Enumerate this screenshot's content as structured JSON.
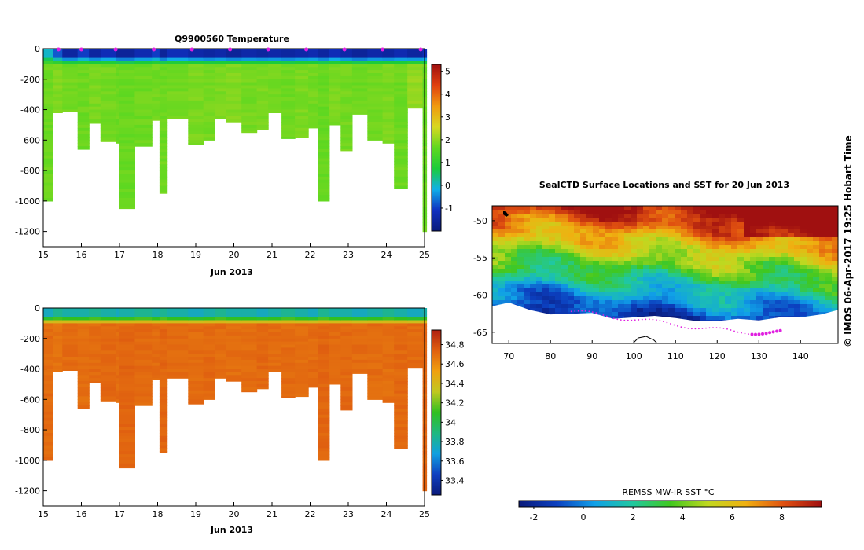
{
  "colors": {
    "temp_stops": [
      "#0a1a7a",
      "#1030c0",
      "#10b0e8",
      "#1ccc3a",
      "#60d820",
      "#d8d820",
      "#f09a10",
      "#e04010",
      "#a01010"
    ],
    "sal_stops": [
      "#0a1a7a",
      "#1040c0",
      "#10a0e0",
      "#20b880",
      "#30c020",
      "#c0c820",
      "#f0a010",
      "#e06010",
      "#b02010"
    ],
    "sst_stops": [
      "#0a1a7a",
      "#0c40c0",
      "#10a0e8",
      "#20c8a0",
      "#40c820",
      "#c0d820",
      "#f0b010",
      "#e05010",
      "#a01010"
    ],
    "marker": "#e020e0"
  },
  "chart_data": [
    {
      "id": "temperature",
      "type": "heatmap",
      "title": "Q9900560  Temperature",
      "xlabel": "Jun 2013",
      "ylabel": "",
      "xlim": [
        15,
        25
      ],
      "ylim": [
        -1300,
        0
      ],
      "x_ticks": [
        "15",
        "16",
        "17",
        "18",
        "19",
        "20",
        "21",
        "22",
        "23",
        "24",
        "25"
      ],
      "y_ticks": [
        "0",
        "-200",
        "-400",
        "-600",
        "-800",
        "-1000",
        "-1200"
      ],
      "colorbar_range": [
        -2,
        5.3
      ],
      "colorbar_ticks": [
        "5",
        "4",
        "3",
        "2",
        "1",
        "0",
        "-1"
      ],
      "profiles": {
        "start": [
          15.0,
          15.25,
          15.5,
          15.9,
          16.2,
          16.5,
          16.9,
          17.0,
          17.4,
          17.85,
          18.05,
          18.25,
          18.8,
          19.2,
          19.5,
          19.8,
          20.2,
          20.6,
          20.9,
          21.25,
          21.6,
          21.95,
          22.2,
          22.5,
          22.8,
          23.1,
          23.5,
          23.9,
          24.2,
          24.55,
          24.95
        ],
        "end": [
          15.25,
          15.5,
          15.9,
          16.2,
          16.5,
          16.9,
          17.0,
          17.4,
          17.85,
          18.05,
          18.25,
          18.8,
          19.2,
          19.5,
          19.8,
          20.2,
          20.6,
          20.9,
          21.25,
          21.6,
          21.95,
          22.2,
          22.5,
          22.8,
          23.1,
          23.5,
          23.9,
          24.2,
          24.55,
          24.95,
          25.05
        ],
        "depth": [
          -1000,
          -420,
          -410,
          -660,
          -490,
          -610,
          -620,
          -1050,
          -640,
          -470,
          -950,
          -460,
          -630,
          -600,
          -460,
          -480,
          -550,
          -530,
          -420,
          -590,
          -580,
          -520,
          -1000,
          -500,
          -670,
          -430,
          -600,
          -620,
          -920,
          -390,
          -1200
        ],
        "surface_value": [
          0.0,
          -0.8,
          -1.5,
          -1.0,
          -1.5,
          -1.2,
          -1.6,
          -1.6,
          -1.3,
          -1.0,
          -1.6,
          -1.2,
          -1.4,
          -1.5,
          -1.4,
          -1.6,
          -1.4,
          -1.5,
          -1.4,
          -1.5,
          -1.4,
          -1.3,
          -1.5,
          -1.2,
          -1.4,
          -1.6,
          -1.4,
          -1.5,
          -1.3,
          -1.5,
          -1.2
        ],
        "deep_value": [
          1.75,
          1.9,
          1.8,
          1.75,
          1.85,
          1.8,
          1.75,
          1.7,
          1.75,
          1.8,
          1.75,
          1.8,
          1.85,
          1.8,
          1.85,
          1.9,
          1.8,
          1.85,
          1.8,
          1.75,
          1.85,
          1.8,
          1.7,
          1.85,
          1.8,
          1.75,
          1.8,
          1.85,
          1.75,
          2.05,
          1.7
        ]
      },
      "surface_markers_x": [
        15.4,
        16.0,
        16.9,
        17.9,
        18.9,
        19.9,
        20.9,
        21.9,
        22.9,
        23.9,
        24.9
      ]
    },
    {
      "id": "salinity",
      "type": "heatmap",
      "title": "",
      "xlabel": "Jun 2013",
      "ylabel": "",
      "xlim": [
        15,
        25
      ],
      "ylim": [
        -1300,
        0
      ],
      "x_ticks": [
        "15",
        "16",
        "17",
        "18",
        "19",
        "20",
        "21",
        "22",
        "23",
        "24",
        "25"
      ],
      "y_ticks": [
        "0",
        "-200",
        "-400",
        "-600",
        "-800",
        "-1000",
        "-1200"
      ],
      "colorbar_range": [
        33.25,
        34.95
      ],
      "colorbar_ticks": [
        "34.8",
        "34.6",
        "34.4",
        "34.2",
        "34",
        "33.8",
        "33.6",
        "33.4"
      ],
      "profiles": {
        "surface_value": [
          33.75,
          33.85,
          33.8,
          33.8,
          33.85,
          33.8,
          33.75,
          33.8,
          33.85,
          33.8,
          33.85,
          33.8,
          33.75,
          33.8,
          33.85,
          33.8,
          33.8,
          33.75,
          33.8,
          33.85,
          33.8,
          33.75,
          33.85,
          33.8,
          33.8,
          33.75,
          33.8,
          33.85,
          33.8,
          33.75,
          33.8
        ],
        "deep_value": [
          34.7,
          34.68,
          34.7,
          34.69,
          34.7,
          34.71,
          34.7,
          34.72,
          34.71,
          34.7,
          34.72,
          34.7,
          34.7,
          34.71,
          34.7,
          34.69,
          34.7,
          34.71,
          34.7,
          34.7,
          34.69,
          34.7,
          34.72,
          34.7,
          34.71,
          34.7,
          34.7,
          34.69,
          34.71,
          34.7,
          34.72
        ]
      }
    },
    {
      "id": "sst_map",
      "type": "heatmap",
      "title": "SealCTD Surface Locations and SST for 20 Jun 2013",
      "xlabel": "",
      "ylabel": "",
      "xlim": [
        66,
        149
      ],
      "ylim": [
        -66.5,
        -48
      ],
      "x_ticks": [
        "70",
        "80",
        "90",
        "100",
        "110",
        "120",
        "130",
        "140"
      ],
      "y_ticks": [
        "-50",
        "-55",
        "-60",
        "-65"
      ],
      "colorbar_label": "REMSS MW-IR SST °C",
      "colorbar_range": [
        -2.6,
        9.6
      ],
      "colorbar_ticks": [
        "-2",
        "0",
        "2",
        "4",
        "6",
        "8"
      ],
      "ice_edge_lat": [
        -61.5,
        -61.0,
        -62.0,
        -62.6,
        -62.5,
        -62.4,
        -63.2,
        -63.0,
        -62.8,
        -63.1,
        -63.5,
        -63.5,
        -63.2,
        -63.4,
        -63.0,
        -63.0,
        -62.6,
        -62.0
      ],
      "ice_edge_lon": [
        66,
        70,
        75,
        80,
        85,
        90,
        95,
        100,
        105,
        110,
        115,
        120,
        125,
        130,
        135,
        140,
        145,
        149
      ]
    }
  ],
  "credit": "© IMOS 06-Apr-2017 19:25 Hobart Time"
}
